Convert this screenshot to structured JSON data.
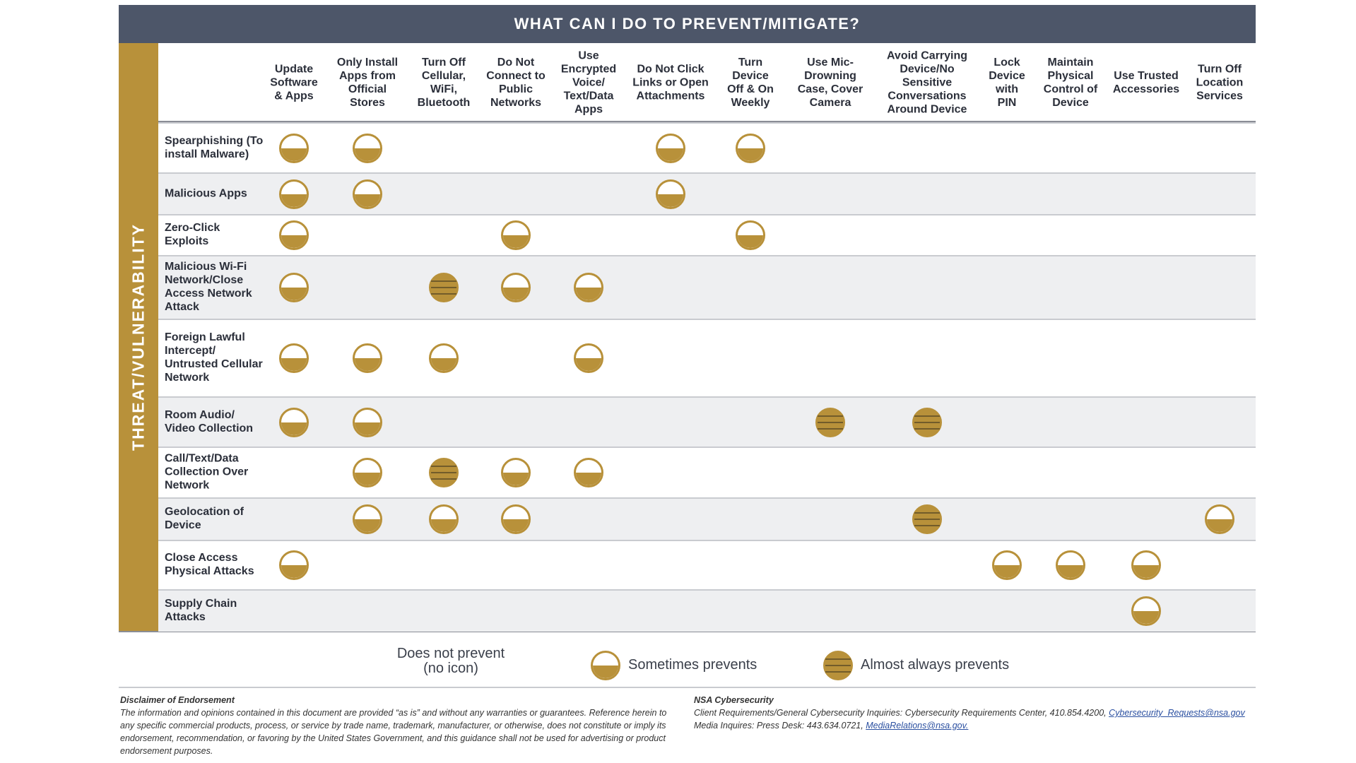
{
  "header": {
    "title": "WHAT CAN I DO TO PREVENT/MITIGATE?"
  },
  "side_label": "THREAT/VULNERABILITY",
  "columns": [
    "Update Software & Apps",
    "Only Install Apps from Official Stores",
    "Turn Off Cellular, WiFi, Bluetooth",
    "Do Not Connect to Public Networks",
    "Use Encrypted Voice/ Text/Data Apps",
    "Do Not Click Links or Open Attachments",
    "Turn Device Off & On Weekly",
    "Use Mic-Drowning Case, Cover Camera",
    "Avoid Carrying Device/No Sensitive Conversations Around Device",
    "Lock Device with PIN",
    "Maintain Physical Control of Device",
    "Use Trusted Accessories",
    "Turn Off Location Services"
  ],
  "rows": [
    {
      "label": "Spearphishing (To install Malware)",
      "levels": [
        1,
        1,
        0,
        0,
        0,
        1,
        1,
        0,
        0,
        0,
        0,
        0,
        0
      ]
    },
    {
      "label": "Malicious Apps",
      "levels": [
        1,
        1,
        0,
        0,
        0,
        1,
        0,
        0,
        0,
        0,
        0,
        0,
        0
      ]
    },
    {
      "label": "Zero-Click Exploits",
      "levels": [
        1,
        0,
        0,
        1,
        0,
        0,
        1,
        0,
        0,
        0,
        0,
        0,
        0
      ]
    },
    {
      "label": "Malicious Wi-Fi Network/Close Access Network Attack",
      "levels": [
        1,
        0,
        2,
        1,
        1,
        0,
        0,
        0,
        0,
        0,
        0,
        0,
        0
      ]
    },
    {
      "label": "Foreign Lawful Intercept/ Untrusted Cellular Network",
      "levels": [
        1,
        1,
        1,
        0,
        1,
        0,
        0,
        0,
        0,
        0,
        0,
        0,
        0
      ]
    },
    {
      "label": "Room Audio/ Video Collection",
      "levels": [
        1,
        1,
        0,
        0,
        0,
        0,
        0,
        2,
        2,
        0,
        0,
        0,
        0
      ]
    },
    {
      "label": "Call/Text/Data Collection Over Network",
      "levels": [
        0,
        1,
        2,
        1,
        1,
        0,
        0,
        0,
        0,
        0,
        0,
        0,
        0
      ]
    },
    {
      "label": "Geolocation of Device",
      "levels": [
        0,
        1,
        1,
        1,
        0,
        0,
        0,
        0,
        2,
        0,
        0,
        0,
        1
      ]
    },
    {
      "label": "Close Access Physical Attacks",
      "levels": [
        1,
        0,
        0,
        0,
        0,
        0,
        0,
        0,
        0,
        1,
        1,
        1,
        0
      ]
    },
    {
      "label": "Supply Chain Attacks",
      "levels": [
        0,
        0,
        0,
        0,
        0,
        0,
        0,
        0,
        0,
        0,
        0,
        1,
        0
      ]
    }
  ],
  "legend": {
    "items": [
      "Does not prevent\n(no icon)",
      "Sometimes prevents",
      "Almost always prevents"
    ]
  },
  "footer": {
    "disclaimer_title": "Disclaimer of Endorsement",
    "disclaimer_text": "The information and opinions contained in this document are provided “as is” and without any warranties or guarantees. Reference herein to any specific commercial products, process, or service by trade name, trademark, manufacturer, or otherwise, does not constitute or imply its endorsement, recommendation, or favoring by the United States Government, and this guidance shall not be used for advertising or product endorsement purposes.",
    "contact_title": "NSA Cybersecurity",
    "contact_line1": "Client Requirements/General Cybersecurity Inquiries: Cybersecurity Requirements Center, 410.854.4200,",
    "contact_email1": "Cybersecurity_Requests@nsa.gov",
    "contact_line2": "Media Inquires: Press Desk: 443.634.0721,",
    "contact_email2": "MediaRelations@nsa.gov."
  }
}
